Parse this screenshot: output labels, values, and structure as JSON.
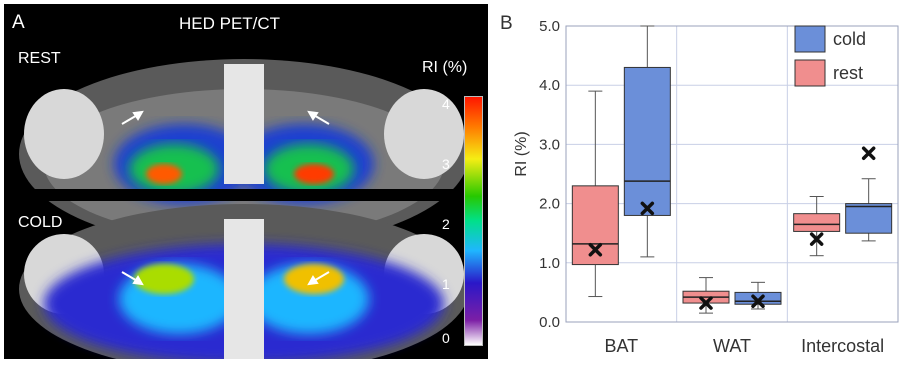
{
  "panel_a": {
    "letter": "A",
    "title": "HED PET/CT",
    "label_top": "REST",
    "label_bottom": "COLD",
    "colorbar": {
      "title": "RI (%)",
      "ticks": [
        "4",
        "3",
        "2",
        "1",
        "0"
      ]
    }
  },
  "panel_b": {
    "letter": "B"
  },
  "chart_data": {
    "type": "box",
    "ylabel": "RI (%)",
    "ylim": [
      0.0,
      5.0
    ],
    "yticks": [
      "5.0",
      "4.0",
      "3.0",
      "2.0",
      "1.0",
      "0.0"
    ],
    "categories": [
      "BAT",
      "WAT",
      "Intercostal"
    ],
    "legend": {
      "position": "top-right"
    },
    "series": [
      {
        "name": "cold",
        "color": "#6b8fd9",
        "boxes": [
          {
            "category": "BAT",
            "min": 1.1,
            "q1": 1.8,
            "median": 2.38,
            "q3": 4.3,
            "max": 5.0,
            "mean": 1.92
          },
          {
            "category": "WAT",
            "min": 0.22,
            "q1": 0.3,
            "median": 0.35,
            "q3": 0.5,
            "max": 0.67,
            "mean": 0.35
          },
          {
            "category": "Intercostal",
            "min": 1.37,
            "q1": 1.5,
            "median": 1.95,
            "q3": 2.0,
            "max": 2.42,
            "mean": 2.85
          }
        ]
      },
      {
        "name": "rest",
        "color": "#f08e8e",
        "boxes": [
          {
            "category": "BAT",
            "min": 0.43,
            "q1": 0.97,
            "median": 1.32,
            "q3": 2.3,
            "max": 3.9,
            "mean": 1.22
          },
          {
            "category": "WAT",
            "min": 0.15,
            "q1": 0.32,
            "median": 0.42,
            "q3": 0.52,
            "max": 0.75,
            "mean": 0.32
          },
          {
            "category": "Intercostal",
            "min": 1.12,
            "q1": 1.53,
            "median": 1.65,
            "q3": 1.83,
            "max": 2.12,
            "mean": 1.4
          }
        ]
      }
    ]
  }
}
